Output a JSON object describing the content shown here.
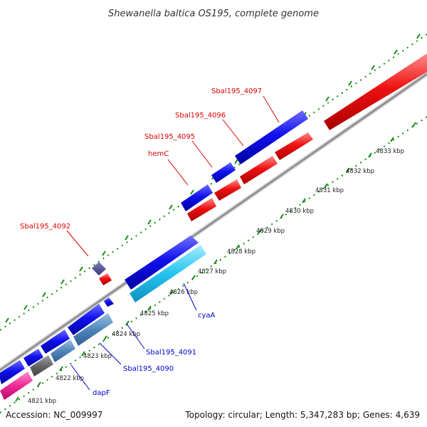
{
  "title": "Shewanella baltica OS195, complete genome",
  "footer": {
    "accession": "Accession: NC_009997",
    "summary": "Topology: circular; Length: 5,347,283 bp; Genes: 4,639"
  },
  "colors": {
    "forward_cds": "#0000e0",
    "reverse_cds": "#ee1111",
    "forward_label": "#0000cc",
    "reverse_label": "#dd0000",
    "backbone": "#9a9a9a",
    "gc_dots": "#138a13"
  },
  "ticks": [
    "4821 kbp",
    "4822 kbp",
    "4823 kbp",
    "4824 kbp",
    "4825 kbp",
    "4826 kbp",
    "4827 kbp",
    "4828 kbp",
    "4829 kbp",
    "4830 kbp",
    "4831 kbp",
    "4832 kbp",
    "4833 kbp"
  ],
  "labels": {
    "top": [
      "Sbal195_4097",
      "Sbal195_4096",
      "Sbal195_4095",
      "hemC",
      "Sbal195_4092"
    ],
    "bottom": [
      "cyaA",
      "Sbal195_4091",
      "Sbal195_4090",
      "dapF"
    ]
  }
}
